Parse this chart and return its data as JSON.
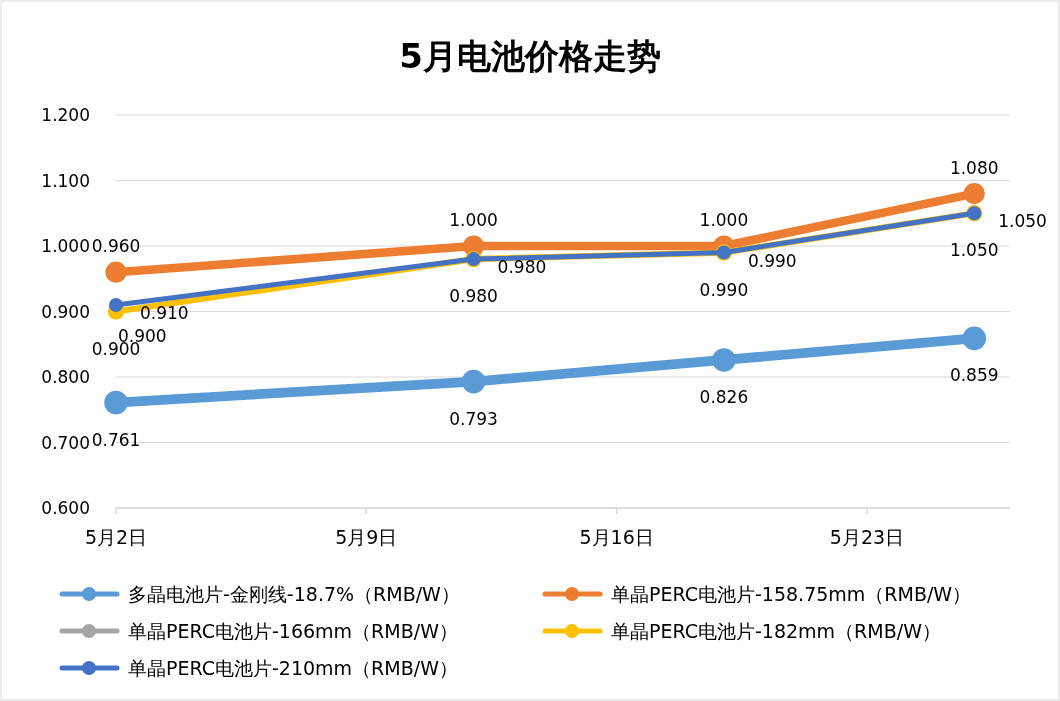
{
  "chart_data": {
    "type": "line",
    "title": "5月电池价格走势",
    "x": [
      "--05-02",
      "--05-12",
      "--05-19",
      "--05-26"
    ],
    "xlim": [
      "--05-02",
      "--05-27"
    ],
    "xticks": [
      {
        "value": "--05-02",
        "label": "5月2日"
      },
      {
        "value": "--05-09",
        "label": "5月9日"
      },
      {
        "value": "--05-16",
        "label": "5月16日"
      },
      {
        "value": "--05-23",
        "label": "5月23日"
      }
    ],
    "ylim": [
      0.6,
      1.2
    ],
    "yticks": [
      {
        "value": 0.6,
        "label": "0.600"
      },
      {
        "value": 0.7,
        "label": "0.700"
      },
      {
        "value": 0.8,
        "label": "0.800"
      },
      {
        "value": 0.9,
        "label": "0.900"
      },
      {
        "value": 1.0,
        "label": "1.000"
      },
      {
        "value": 1.1,
        "label": "1.100"
      },
      {
        "value": 1.2,
        "label": "1.200"
      }
    ],
    "grid": "y",
    "marker": "circle",
    "line_style": "solid",
    "legend": "bottom",
    "series": [
      {
        "name": "多晶电池片-金刚线-18.7%（RMB/W）",
        "color": "#5b9bd5",
        "values": [
          0.761,
          0.793,
          0.826,
          0.859
        ],
        "value_labels": [
          "0.761",
          "0.793",
          "0.826",
          "0.859"
        ]
      },
      {
        "name": "单晶PERC电池片-158.75mm（RMB/W）",
        "color": "#ed7d31",
        "values": [
          0.96,
          1.0,
          1.0,
          1.08
        ],
        "value_labels": [
          "0.960",
          "1.000",
          "1.000",
          "1.080"
        ]
      },
      {
        "name": "单晶PERC电池片-166mm（RMB/W）",
        "color": "#a5a5a5",
        "values": [
          null,
          null,
          null,
          null
        ]
      },
      {
        "name": "单晶PERC电池片-182mm（RMB/W）",
        "color": "#ffc000",
        "values": [
          0.9,
          0.98,
          0.99,
          1.05
        ],
        "value_labels": [
          "0.900",
          "0.980",
          "0.990",
          "1.050"
        ]
      },
      {
        "name": "单晶PERC电池片-210mm（RMB/W）",
        "color": "#4472c4",
        "values": [
          0.91,
          0.98,
          0.99,
          1.05
        ],
        "value_labels": [
          "0.910",
          "0.980",
          "0.990",
          "1.050"
        ]
      }
    ],
    "annotations": [
      {
        "text": "0.900",
        "x": "--05-02",
        "y": 0.9
      }
    ]
  }
}
